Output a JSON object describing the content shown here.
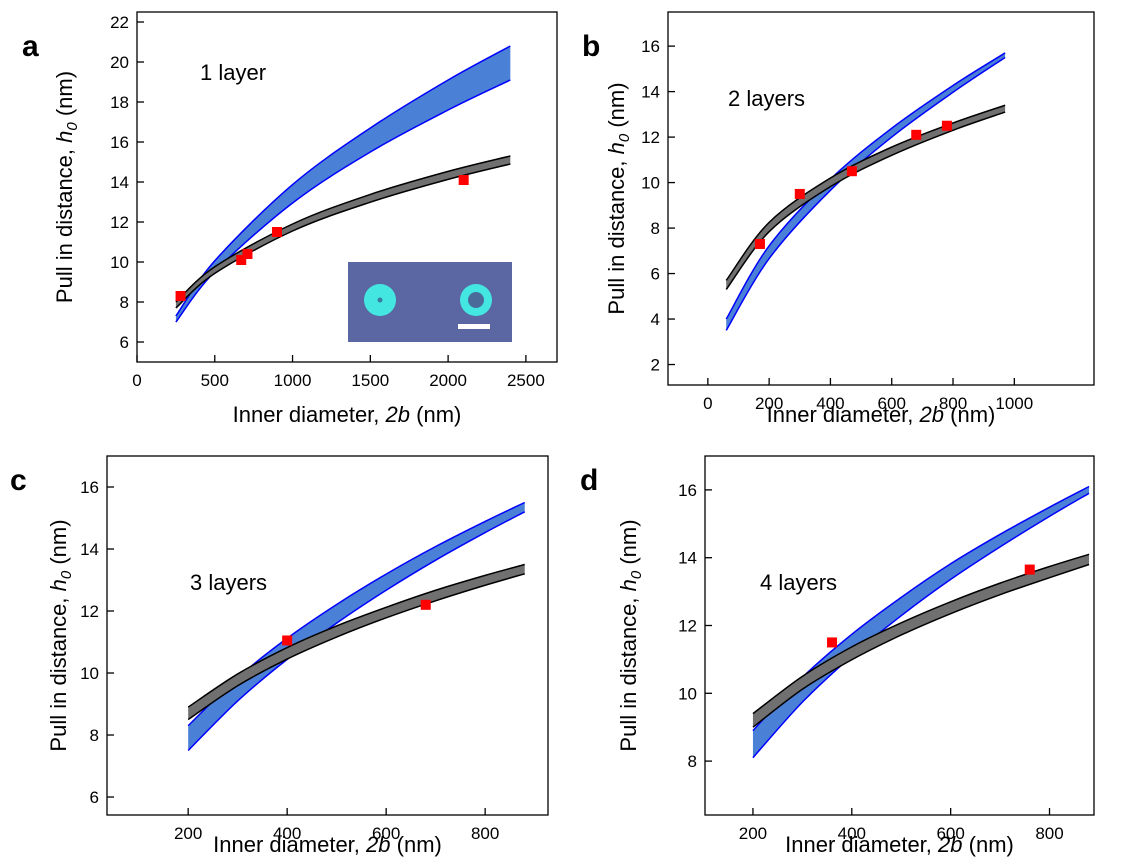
{
  "chart_data": [
    {
      "type": "band",
      "panel_label": "a",
      "annotation": "1 layer",
      "x_label": {
        "text": "Inner diameter, ",
        "italic": "2b",
        "unit": " (nm)"
      },
      "y_label": {
        "text": "Pull in distance, ",
        "italic": "h",
        "subscript": "0",
        "unit": " (nm)"
      },
      "xlim": [
        0,
        2700
      ],
      "xticks": [
        0,
        500,
        1000,
        1500,
        2000,
        2500
      ],
      "ylim": [
        5,
        22.5
      ],
      "yticks": [
        6,
        8,
        10,
        12,
        14,
        16,
        18,
        20,
        22
      ],
      "x": [
        250,
        500,
        1000,
        1500,
        2000,
        2400
      ],
      "bands": [
        {
          "fill": "#4a80d6",
          "stroke": "#0000ff",
          "lower": [
            7.0,
            9.52,
            12.95,
            15.5,
            17.6,
            19.1
          ],
          "upper": [
            7.3,
            10.06,
            13.87,
            16.7,
            19.1,
            20.8
          ]
        },
        {
          "fill": "#707070",
          "stroke": "#000000",
          "lower": [
            7.7,
            9.43,
            11.55,
            12.99,
            14.13,
            14.9
          ],
          "upper": [
            8.0,
            9.76,
            11.9,
            13.38,
            14.53,
            15.3
          ]
        }
      ],
      "points": {
        "color": "#ff0000",
        "x": [
          280,
          670,
          710,
          900,
          2100
        ],
        "values": [
          8.3,
          10.1,
          10.4,
          11.5,
          14.1
        ]
      }
    },
    {
      "type": "band",
      "panel_label": "b",
      "annotation": "2 layers",
      "x_label": {
        "text": "Inner diameter, ",
        "italic": "2b",
        "unit": " (nm)"
      },
      "y_label": {
        "text": "Pull in distance, ",
        "italic": "h",
        "subscript": "0",
        "unit": " (nm)"
      },
      "xlim": [
        -130,
        1260
      ],
      "xticks": [
        0,
        200,
        400,
        600,
        800,
        1000
      ],
      "ylim": [
        1.1,
        17.5
      ],
      "yticks": [
        2,
        4,
        6,
        8,
        10,
        12,
        14,
        16
      ],
      "x": [
        60,
        200,
        400,
        600,
        800,
        970
      ],
      "bands": [
        {
          "fill": "#4a80d6",
          "stroke": "#0000ff",
          "lower": [
            3.5,
            6.66,
            9.66,
            12.0,
            13.97,
            15.5
          ],
          "upper": [
            4.0,
            7.22,
            10.15,
            12.39,
            14.27,
            15.7
          ]
        },
        {
          "fill": "#707070",
          "stroke": "#000000",
          "lower": [
            5.3,
            7.84,
            9.82,
            11.2,
            12.3,
            13.1
          ],
          "upper": [
            5.7,
            8.25,
            10.2,
            11.56,
            12.62,
            13.4
          ]
        }
      ],
      "points": {
        "color": "#ff0000",
        "x": [
          170,
          300,
          470,
          680,
          780
        ],
        "values": [
          7.3,
          9.5,
          10.5,
          12.1,
          12.5
        ]
      }
    },
    {
      "type": "band",
      "panel_label": "c",
      "annotation": "3 layers",
      "x_label": {
        "text": "Inner diameter, ",
        "italic": "2b",
        "unit": " (nm)"
      },
      "y_label": {
        "text": "Pull in distance, ",
        "italic": "h",
        "subscript": "0",
        "unit": " (nm)"
      },
      "xlim": [
        36,
        927
      ],
      "xticks": [
        200,
        400,
        600,
        800
      ],
      "ylim": [
        5.42,
        17
      ],
      "yticks": [
        6,
        8,
        10,
        12,
        14,
        16
      ],
      "x": [
        200,
        300,
        400,
        500,
        600,
        700,
        800,
        880
      ],
      "bands": [
        {
          "fill": "#4a80d6",
          "stroke": "#0000ff",
          "lower": [
            7.5,
            9.1,
            10.44,
            11.61,
            12.67,
            13.64,
            14.53,
            15.2
          ],
          "upper": [
            8.3,
            9.85,
            11.12,
            12.21,
            13.19,
            14.08,
            14.89,
            15.5
          ]
        },
        {
          "fill": "#707070",
          "stroke": "#000000",
          "lower": [
            8.5,
            9.59,
            10.45,
            11.16,
            11.78,
            12.33,
            12.83,
            13.2
          ],
          "upper": [
            8.9,
            9.97,
            10.82,
            11.52,
            12.12,
            12.67,
            13.15,
            13.5
          ]
        }
      ],
      "points": {
        "color": "#ff0000",
        "x": [
          400,
          680
        ],
        "values": [
          11.05,
          12.2
        ]
      }
    },
    {
      "type": "band",
      "panel_label": "d",
      "annotation": "4 layers",
      "x_label": {
        "text": "Inner diameter, ",
        "italic": "2b",
        "unit": " (nm)"
      },
      "y_label": {
        "text": "Pull in distance, ",
        "italic": "h",
        "subscript": "0",
        "unit": " (nm)"
      },
      "xlim": [
        103,
        890
      ],
      "xticks": [
        200,
        400,
        600,
        800
      ],
      "ylim": [
        6.41,
        17
      ],
      "yticks": [
        8,
        10,
        12,
        14,
        16
      ],
      "x": [
        200,
        300,
        400,
        500,
        600,
        700,
        800,
        880
      ],
      "bands": [
        {
          "fill": "#4a80d6",
          "stroke": "#0000ff",
          "lower": [
            8.1,
            9.74,
            11.1,
            12.29,
            13.36,
            14.32,
            15.22,
            15.9
          ],
          "upper": [
            8.9,
            10.47,
            11.74,
            12.83,
            13.82,
            14.69,
            15.49,
            16.1
          ]
        },
        {
          "fill": "#707070",
          "stroke": "#000000",
          "lower": [
            9.0,
            10.12,
            10.99,
            11.72,
            12.35,
            12.91,
            13.41,
            13.8
          ],
          "upper": [
            9.4,
            10.5,
            11.37,
            12.08,
            12.7,
            13.25,
            13.74,
            14.1
          ]
        }
      ],
      "points": {
        "color": "#ff0000",
        "x": [
          360,
          760
        ],
        "values": [
          11.5,
          13.65
        ]
      }
    }
  ]
}
